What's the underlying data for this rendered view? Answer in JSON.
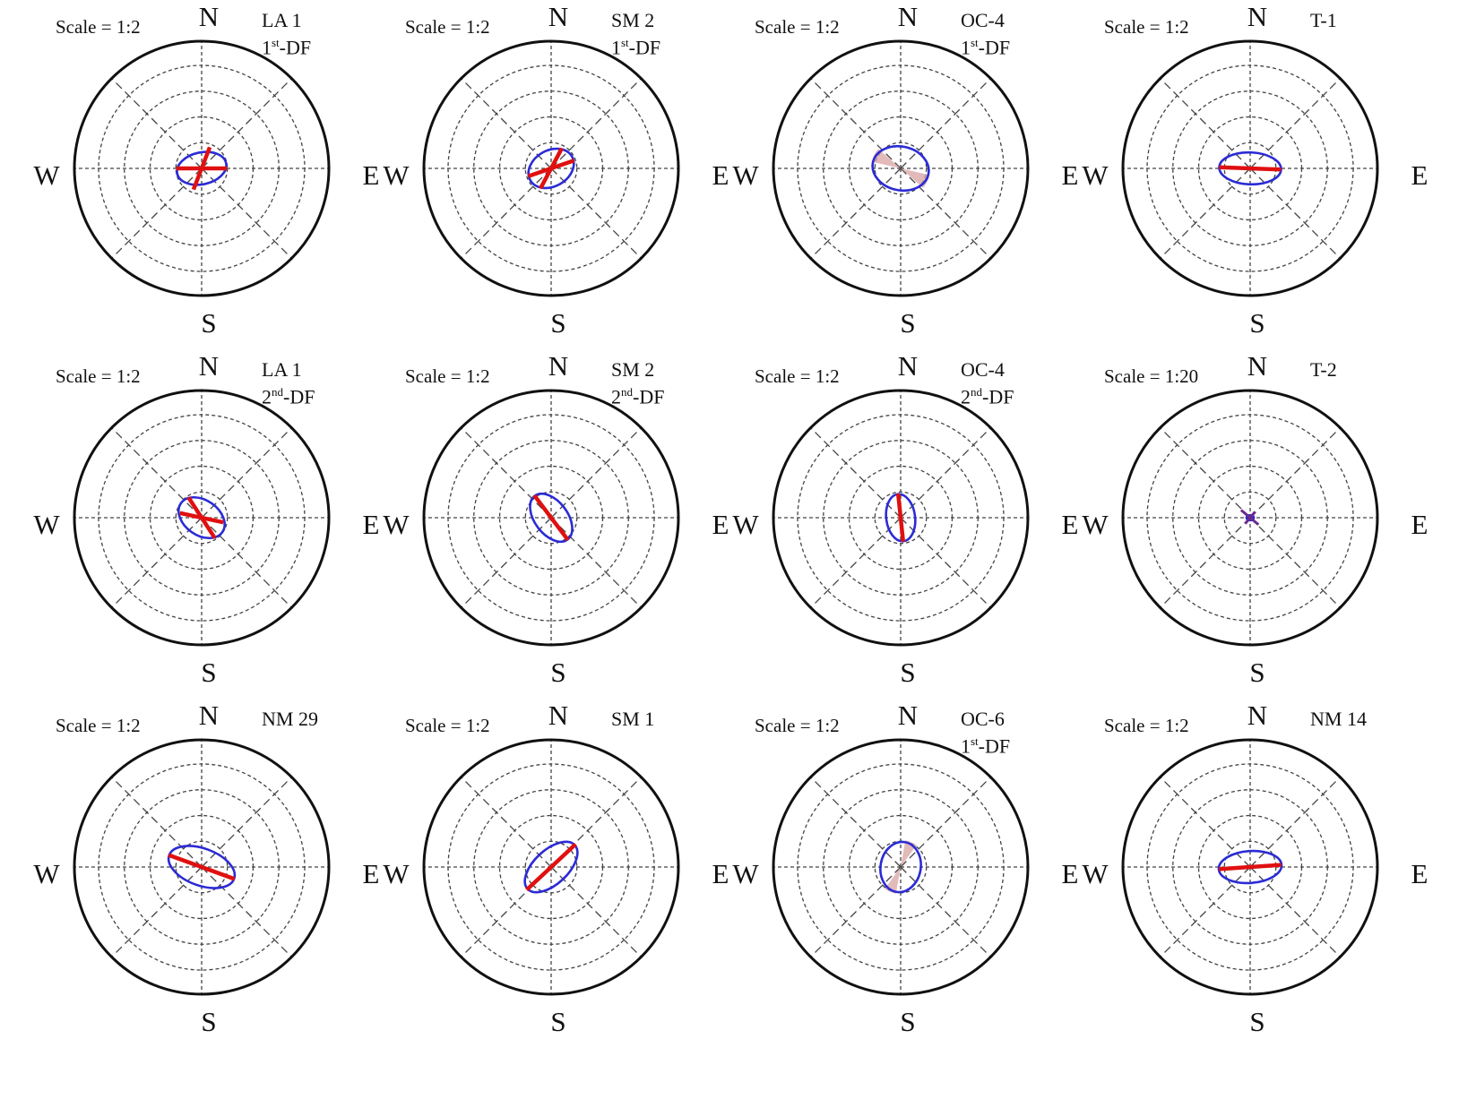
{
  "colors": {
    "frame": "#111111",
    "grid": "#444444",
    "ellipse": "#2b2bd6",
    "principal_axis": "#e01010",
    "uncertainty_wedge": "#d9a3a3",
    "t2_axis": "#6a2a8c"
  },
  "directions": {
    "n": "N",
    "s": "S",
    "w": "W",
    "e": "E"
  },
  "chart_data": [
    {
      "type": "polar",
      "scale": "Scale = 1:2",
      "label": "LA 1",
      "label2_prefix": "1",
      "label2_sup": "st",
      "label2_suffix": "-DF",
      "rings": 4,
      "ellipse": {
        "a": 0.97,
        "b": 0.62,
        "angle_deg": 12
      },
      "axes": [
        {
          "angle_deg": 0,
          "rp": 0.98,
          "rn": 0.98,
          "color": "red"
        },
        {
          "angle_deg": 69,
          "rp": 0.88,
          "rn": 0.88,
          "color": "red"
        }
      ]
    },
    {
      "type": "polar",
      "scale": "Scale = 1:2",
      "label": "SM 2",
      "label2_prefix": "1",
      "label2_sup": "st",
      "label2_suffix": "-DF",
      "rings": 4,
      "ellipse": {
        "a": 0.93,
        "b": 0.7,
        "angle_deg": 30
      },
      "axes": [
        {
          "angle_deg": 19,
          "rp": 0.94,
          "rn": 0.94,
          "color": "red"
        },
        {
          "angle_deg": 62,
          "rp": 0.88,
          "rn": 0.88,
          "color": "red"
        }
      ]
    },
    {
      "type": "polar",
      "scale": "Scale = 1:2",
      "label": "OC-4",
      "label2_prefix": "1",
      "label2_sup": "st",
      "label2_suffix": "-DF",
      "rings": 4,
      "ellipse": {
        "a": 1.1,
        "b": 0.85,
        "angle_deg": -12
      },
      "wedge": {
        "angle_deg": -27,
        "half_width_deg": 14,
        "r": 1.15
      },
      "axes": []
    },
    {
      "type": "polar",
      "scale": "Scale = 1:2",
      "label": "T-1",
      "label2_prefix": "",
      "label2_sup": "",
      "label2_suffix": "",
      "rings": 4,
      "ellipse": {
        "a": 1.2,
        "b": 0.62,
        "angle_deg": -2
      },
      "axes": [
        {
          "angle_deg": -2,
          "rp": 1.2,
          "rn": 1.2,
          "color": "red"
        }
      ]
    },
    {
      "type": "polar",
      "scale": "Scale = 1:2",
      "label": "LA 1",
      "label2_prefix": "2",
      "label2_sup": "nd",
      "label2_suffix": "-DF",
      "rings": 4,
      "ellipse": {
        "a": 0.98,
        "b": 0.68,
        "angle_deg": -35
      },
      "axes": [
        {
          "angle_deg": -12,
          "rp": 0.86,
          "rn": 0.86,
          "color": "red"
        },
        {
          "angle_deg": 123,
          "rp": 0.94,
          "rn": 0.94,
          "color": "red"
        }
      ]
    },
    {
      "type": "polar",
      "scale": "Scale = 1:2",
      "label": "SM 2",
      "label2_prefix": "2",
      "label2_sup": "nd",
      "label2_suffix": "-DF",
      "rings": 4,
      "ellipse": {
        "a": 1.06,
        "b": 0.64,
        "angle_deg": -53
      },
      "axes": [
        {
          "angle_deg": -53,
          "rp": 1.08,
          "rn": 1.08,
          "color": "red"
        }
      ]
    },
    {
      "type": "polar",
      "scale": "Scale = 1:2",
      "label": "OC-4",
      "label2_prefix": "2",
      "label2_sup": "nd",
      "label2_suffix": "-DF",
      "rings": 4,
      "ellipse": {
        "a": 0.92,
        "b": 0.56,
        "angle_deg": -83
      },
      "axes": [
        {
          "angle_deg": -84,
          "rp": 0.94,
          "rn": 0.94,
          "color": "red"
        }
      ]
    },
    {
      "type": "polar",
      "scale": "Scale = 1:20",
      "label": "T-2",
      "label2_prefix": "",
      "label2_sup": "",
      "label2_suffix": "",
      "rings": 4,
      "ellipse": {
        "a": 0.14,
        "b": 0.1,
        "angle_deg": 0
      },
      "axes": [
        {
          "angle_deg": 140,
          "rp": 0.46,
          "rn": 0.42,
          "color": "t2"
        },
        {
          "angle_deg": 50,
          "rp": 0.3,
          "rn": 0.3,
          "color": "t2"
        }
      ]
    },
    {
      "type": "polar",
      "scale": "Scale = 1:2",
      "label": "NM 29",
      "label2_prefix": "",
      "label2_sup": "",
      "label2_suffix": "",
      "rings": 4,
      "ellipse": {
        "a": 1.34,
        "b": 0.72,
        "angle_deg": -20
      },
      "axes": [
        {
          "angle_deg": -20,
          "rp": 1.36,
          "rn": 1.36,
          "color": "red"
        }
      ]
    },
    {
      "type": "polar",
      "scale": "Scale = 1:2",
      "label": "SM 1",
      "label2_prefix": "",
      "label2_sup": "",
      "label2_suffix": "",
      "rings": 4,
      "ellipse": {
        "a": 1.25,
        "b": 0.66,
        "angle_deg": 43
      },
      "axes": [
        {
          "angle_deg": 43,
          "rp": 1.3,
          "rn": 1.3,
          "color": "red"
        }
      ]
    },
    {
      "type": "polar",
      "scale": "Scale = 1:2",
      "label": "OC-6",
      "label2_prefix": "1",
      "label2_sup": "st",
      "label2_suffix": "-DF",
      "rings": 4,
      "ellipse": {
        "a": 0.98,
        "b": 0.78,
        "angle_deg": 80
      },
      "wedge": {
        "angle_deg": 67,
        "half_width_deg": 13,
        "r": 1.05
      },
      "axes": []
    },
    {
      "type": "polar",
      "scale": "Scale = 1:2",
      "label": "NM 14",
      "label2_prefix": "",
      "label2_sup": "",
      "label2_suffix": "",
      "rings": 4,
      "ellipse": {
        "a": 1.22,
        "b": 0.62,
        "angle_deg": 4
      },
      "axes": [
        {
          "angle_deg": 4,
          "rp": 1.21,
          "rn": 1.21,
          "color": "red"
        }
      ]
    }
  ]
}
